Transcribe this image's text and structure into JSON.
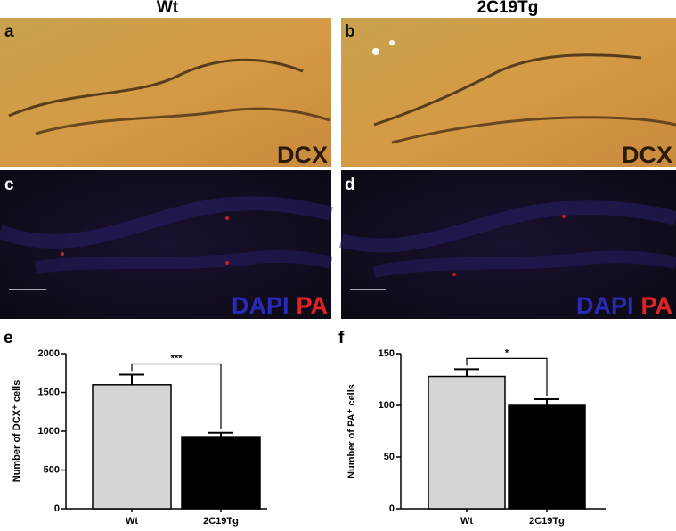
{
  "columns": [
    "Wt",
    "2C19Tg"
  ],
  "panels": [
    {
      "label": "a",
      "stains": [
        {
          "text": "DCX",
          "color": "#2a1a0a"
        }
      ]
    },
    {
      "label": "b",
      "stains": [
        {
          "text": "DCX",
          "color": "#2a1a0a"
        }
      ]
    },
    {
      "label": "c",
      "stains": [
        {
          "text": "DAPI",
          "color": "#2a2ab8"
        },
        {
          "text": "PA",
          "color": "#e02424"
        }
      ]
    },
    {
      "label": "d",
      "stains": [
        {
          "text": "DAPI",
          "color": "#2a2ab8"
        },
        {
          "text": "PA",
          "color": "#e02424"
        }
      ]
    }
  ],
  "chart_data": [
    {
      "type": "bar",
      "panel": "e",
      "ylabel": "Number of DCX⁺ cells",
      "categories": [
        "Wt",
        "2C19Tg"
      ],
      "values": [
        1600,
        930
      ],
      "errors": [
        130,
        50
      ],
      "colors": [
        "#d4d4d4",
        "#000000"
      ],
      "ylim": [
        0,
        2000
      ],
      "yticks": [
        0,
        500,
        1000,
        1500,
        2000
      ],
      "annotation": "***"
    },
    {
      "type": "bar",
      "panel": "f",
      "ylabel": "Number of PA⁺ cells",
      "categories": [
        "Wt",
        "2C19Tg"
      ],
      "values": [
        128,
        100
      ],
      "errors": [
        7,
        6
      ],
      "colors": [
        "#d4d4d4",
        "#000000"
      ],
      "ylim": [
        0,
        150
      ],
      "yticks": [
        0,
        50,
        100,
        150
      ],
      "annotation": "*"
    }
  ]
}
